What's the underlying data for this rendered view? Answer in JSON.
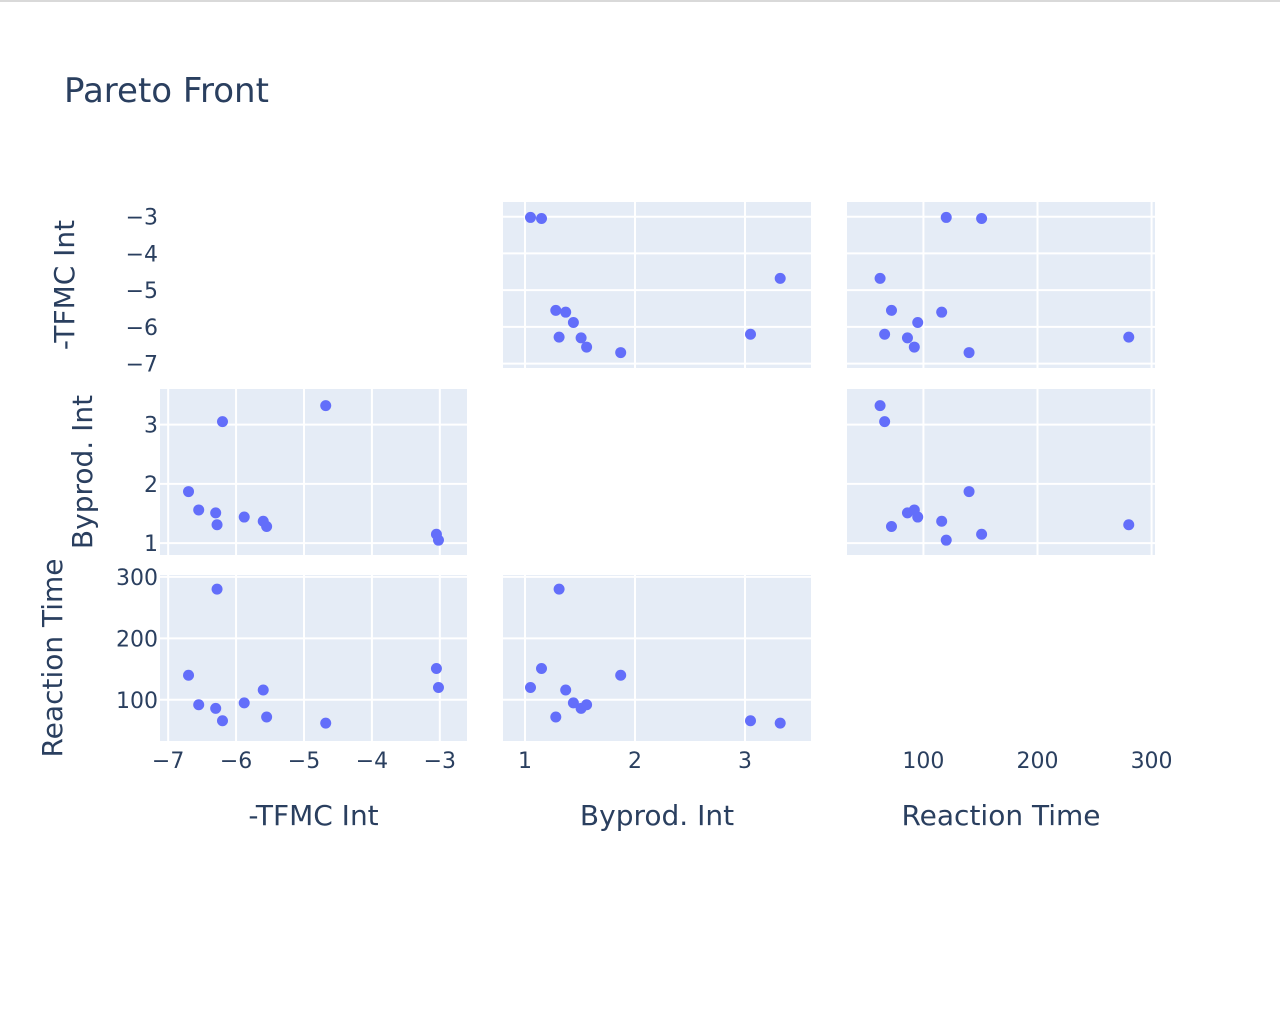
{
  "chart_data": {
    "type": "scatter",
    "title": "Pareto Front",
    "dimensions": [
      "-TFMC Int",
      "Byprod. Int",
      "Reaction Time"
    ],
    "marker_color": "#636efa",
    "plot_bg": "#e5ecf6",
    "grid": true,
    "diagonal_visible": false,
    "upper_half_visible": true,
    "points": [
      {
        "tfmc": -3.02,
        "byprod": 1.05,
        "time": 120
      },
      {
        "tfmc": -3.05,
        "byprod": 1.15,
        "time": 151
      },
      {
        "tfmc": -4.68,
        "byprod": 3.32,
        "time": 62
      },
      {
        "tfmc": -5.55,
        "byprod": 1.28,
        "time": 72
      },
      {
        "tfmc": -5.6,
        "byprod": 1.37,
        "time": 116
      },
      {
        "tfmc": -5.88,
        "byprod": 1.44,
        "time": 95
      },
      {
        "tfmc": -6.2,
        "byprod": 3.05,
        "time": 66
      },
      {
        "tfmc": -6.28,
        "byprod": 1.31,
        "time": 280
      },
      {
        "tfmc": -6.3,
        "byprod": 1.51,
        "time": 86
      },
      {
        "tfmc": -6.55,
        "byprod": 1.56,
        "time": 92
      },
      {
        "tfmc": -6.7,
        "byprod": 1.87,
        "time": 140
      }
    ],
    "axes": {
      "tfmc": {
        "label": "-TFMC Int",
        "range": [
          -7.12,
          -2.6
        ],
        "ticks": [
          -7,
          -6,
          -5,
          -4,
          -3
        ],
        "tick_labels": [
          "−7",
          "−6",
          "−5",
          "−4",
          "−3"
        ]
      },
      "byprod": {
        "label": "Byprod. Int",
        "range": [
          0.8,
          3.6
        ],
        "ticks": [
          1,
          2,
          3
        ],
        "tick_labels": [
          "1",
          "2",
          "3"
        ]
      },
      "time": {
        "label": "Reaction Time",
        "range": [
          33,
          303
        ],
        "ticks": [
          100,
          200,
          300
        ],
        "tick_labels": [
          "100",
          "200",
          "300"
        ]
      }
    }
  }
}
